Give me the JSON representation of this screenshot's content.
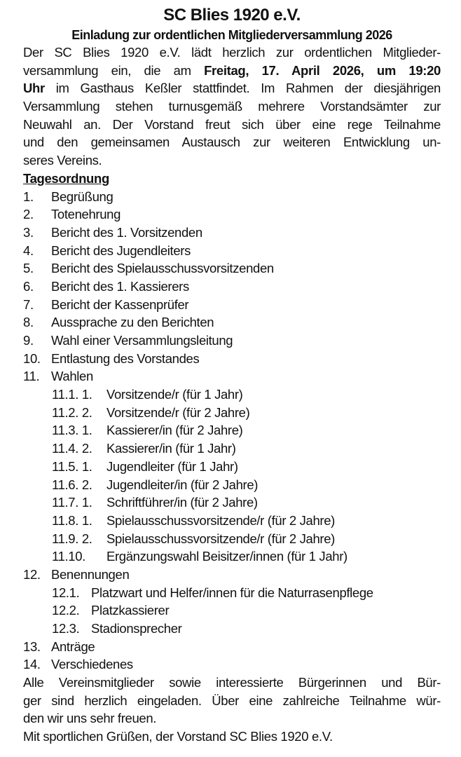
{
  "title": "SC Blies 1920 e.V.",
  "subtitle": "Einladung zur ordentlichen Mitgliederversammlung 2026",
  "intro": {
    "l1": "Der SC Blies 1920 e.V. lädt herzlich zur ordentlichen Mitglieder-",
    "l2a": "versammlung ein, die am ",
    "l2b": "Freitag, 17. April 2026, um 19:20",
    "l3a": "Uhr",
    "l3b": " im Gasthaus Keßler stattfindet. Im Rahmen der diesjährigen",
    "l4": "Versammlung stehen turnusgemäß mehrere Vorstandsämter zur",
    "l5": "Neuwahl an. Der Vorstand freut sich über eine rege Teilnahme",
    "l6": "und den gemeinsamen Austausch zur weiteren Entwicklung un-",
    "l7": "seres Vereins."
  },
  "agenda_heading": "Tagesordnung",
  "agenda": [
    {
      "num": "1.",
      "text": "Begrüßung"
    },
    {
      "num": "2.",
      "text": "Totenehrung"
    },
    {
      "num": "3.",
      "text": "Bericht des 1. Vorsitzenden"
    },
    {
      "num": "4.",
      "text": "Bericht des Jugendleiters"
    },
    {
      "num": "5.",
      "text": "Bericht des Spielausschussvorsitzenden"
    },
    {
      "num": "6.",
      "text": "Bericht des 1. Kassierers"
    },
    {
      "num": "7.",
      "text": "Bericht der Kassenprüfer"
    },
    {
      "num": "8.",
      "text": "Aussprache zu den Berichten"
    },
    {
      "num": "9.",
      "text": "Wahl einer Versammlungsleitung"
    },
    {
      "num": "10.",
      "text": "Entlastung des Vorstandes"
    },
    {
      "num": "11.",
      "text": "Wahlen"
    },
    {
      "num": "12.",
      "text": "Benennungen"
    },
    {
      "num": "13.",
      "text": "Anträge"
    },
    {
      "num": "14.",
      "text": "Verschiedenes"
    }
  ],
  "wahlen": [
    {
      "num": "11.1. 1.",
      "text": "Vorsitzende/r (für 1 Jahr)"
    },
    {
      "num": "11.2. 2.",
      "text": "Vorsitzende/r (für 2 Jahre)"
    },
    {
      "num": "11.3. 1.",
      "text": "Kassierer/in (für 2 Jahre)"
    },
    {
      "num": "11.4. 2.",
      "text": "Kassierer/in (für 1 Jahr)"
    },
    {
      "num": "11.5. 1.",
      "text": "Jugendleiter (für 1 Jahr)"
    },
    {
      "num": "11.6. 2.",
      "text": "Jugendleiter/in (für 2 Jahre)"
    },
    {
      "num": "11.7. 1.",
      "text": "Schriftführer/in (für 2 Jahre)"
    },
    {
      "num": "11.8. 1.",
      "text": "Spielausschussvorsitzende/r (für 2 Jahre)"
    },
    {
      "num": "11.9. 2.",
      "text": "Spielausschussvorsitzende/r (für 2 Jahre)"
    },
    {
      "num": "11.10.",
      "text": "Ergänzungswahl Beisitzer/innen (für 1 Jahr)"
    }
  ],
  "benennungen": [
    {
      "num": "12.1.",
      "text": "Platzwart und Helfer/innen für die Naturrasenpflege"
    },
    {
      "num": "12.2.",
      "text": "Platzkassierer"
    },
    {
      "num": "12.3.",
      "text": "Stadionsprecher"
    }
  ],
  "closing": {
    "l1": "Alle Vereinsmitglieder sowie interessierte Bürgerinnen und Bür-",
    "l2": "ger sind herzlich eingeladen. Über eine zahlreiche Teilnahme wür-",
    "l3": "den wir uns sehr freuen.",
    "l4": "Mit sportlichen Grüßen, der Vorstand SC Blies 1920 e.V."
  }
}
